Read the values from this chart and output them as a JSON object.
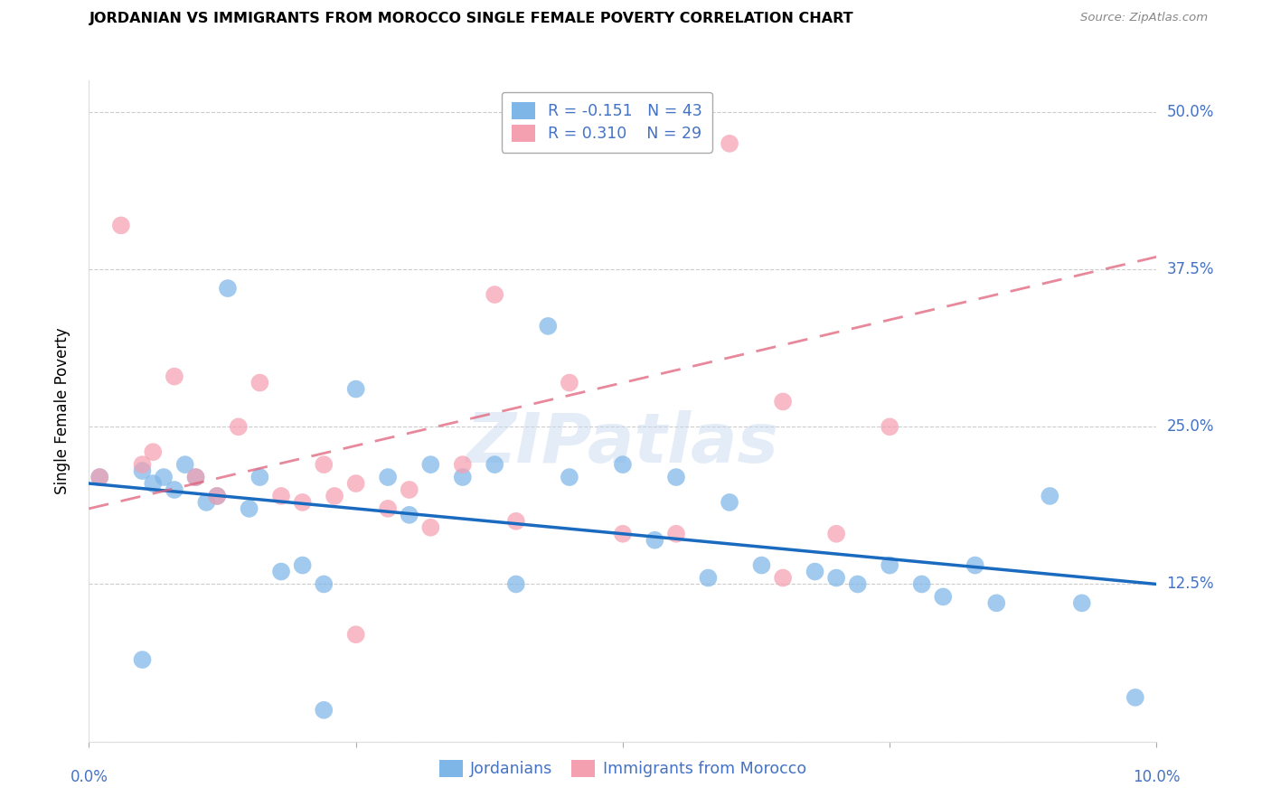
{
  "title": "JORDANIAN VS IMMIGRANTS FROM MOROCCO SINGLE FEMALE POVERTY CORRELATION CHART",
  "source": "Source: ZipAtlas.com",
  "ylabel": "Single Female Poverty",
  "xlim": [
    0.0,
    0.1
  ],
  "ylim": [
    0.0,
    0.525
  ],
  "yticks": [
    0.0,
    0.125,
    0.25,
    0.375,
    0.5
  ],
  "ytick_labels": [
    "",
    "12.5%",
    "25.0%",
    "37.5%",
    "50.0%"
  ],
  "grid_color": "#cccccc",
  "bg_color": "#ffffff",
  "watermark": "ZIPatlas",
  "j_color": "#7eb6e8",
  "m_color": "#f4a0b0",
  "j_line_color": "#1a6bbf",
  "m_line_color": "#e0607a",
  "label_color": "#4472c4",
  "j_R": "-0.151",
  "j_N": "43",
  "m_R": "0.310",
  "m_N": "29",
  "j_x": [
    0.001,
    0.005,
    0.006,
    0.007,
    0.008,
    0.009,
    0.01,
    0.011,
    0.012,
    0.013,
    0.015,
    0.016,
    0.018,
    0.02,
    0.022,
    0.025,
    0.028,
    0.03,
    0.032,
    0.035,
    0.038,
    0.04,
    0.043,
    0.045,
    0.05,
    0.053,
    0.055,
    0.058,
    0.06,
    0.063,
    0.068,
    0.07,
    0.072,
    0.075,
    0.078,
    0.08,
    0.083,
    0.085,
    0.09,
    0.093,
    0.005,
    0.022,
    0.098
  ],
  "j_y": [
    0.21,
    0.215,
    0.205,
    0.21,
    0.2,
    0.22,
    0.21,
    0.19,
    0.195,
    0.36,
    0.185,
    0.21,
    0.135,
    0.14,
    0.125,
    0.28,
    0.21,
    0.18,
    0.22,
    0.21,
    0.22,
    0.125,
    0.33,
    0.21,
    0.22,
    0.16,
    0.21,
    0.13,
    0.19,
    0.14,
    0.135,
    0.13,
    0.125,
    0.14,
    0.125,
    0.115,
    0.14,
    0.11,
    0.195,
    0.11,
    0.065,
    0.025,
    0.035
  ],
  "m_x": [
    0.001,
    0.005,
    0.006,
    0.008,
    0.01,
    0.012,
    0.014,
    0.016,
    0.018,
    0.02,
    0.022,
    0.025,
    0.028,
    0.03,
    0.032,
    0.035,
    0.038,
    0.04,
    0.045,
    0.05,
    0.055,
    0.06,
    0.065,
    0.07,
    0.075,
    0.023,
    0.025,
    0.003,
    0.065
  ],
  "m_y": [
    0.21,
    0.22,
    0.23,
    0.29,
    0.21,
    0.195,
    0.25,
    0.285,
    0.195,
    0.19,
    0.22,
    0.205,
    0.185,
    0.2,
    0.17,
    0.22,
    0.355,
    0.175,
    0.285,
    0.165,
    0.165,
    0.475,
    0.13,
    0.165,
    0.25,
    0.195,
    0.085,
    0.41,
    0.27
  ],
  "j_line": [
    0.205,
    0.125
  ],
  "m_line": [
    0.185,
    0.385
  ],
  "marker_size": 200,
  "marker_alpha": 0.72
}
